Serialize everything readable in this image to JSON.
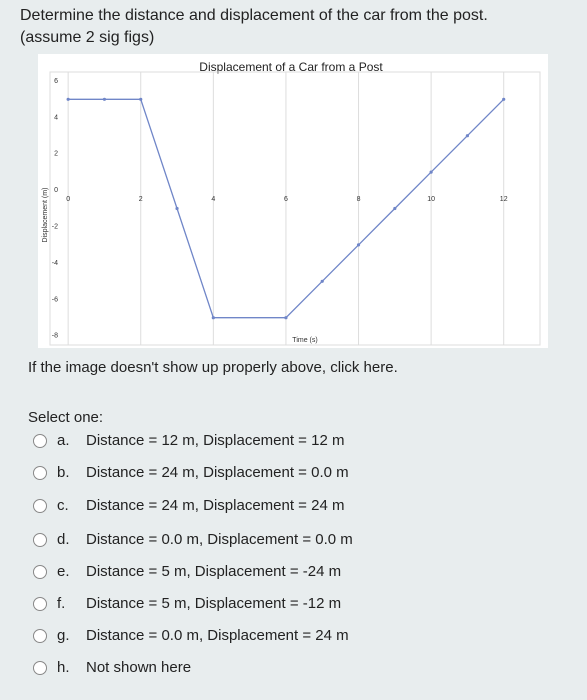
{
  "question": [
    "Determine the distance and displacement of the car from the post.",
    "(assume 2 sig figs)"
  ],
  "chart_data": {
    "type": "line",
    "title": "Displacement of a Car from a Post",
    "x_label": "Time (s)",
    "y_label": "Displacement (m)",
    "x": [
      0,
      1,
      2,
      3,
      4,
      6,
      7,
      8,
      9,
      10,
      11,
      12
    ],
    "series": [
      {
        "name": "Displacement",
        "color": "#7086c8",
        "values": [
          5,
          5,
          5,
          -1,
          -7,
          -7,
          -5,
          -3,
          -1,
          1,
          3,
          5
        ]
      }
    ],
    "xlim": [
      -0.5,
      13
    ],
    "ylim": [
      -8.5,
      6.5
    ],
    "xticks": [
      0,
      2,
      4,
      6,
      8,
      10,
      12
    ],
    "yticks": [
      -8,
      -6,
      -4,
      -2,
      0,
      2,
      4,
      6
    ],
    "grid": "x"
  },
  "note": "If the image doesn't show up properly above, click here.",
  "prompt": "Select one:",
  "options": [
    {
      "letter": "a.",
      "text": "Distance = 12 m, Displacement = 12 m"
    },
    {
      "letter": "b.",
      "text": "Distance = 24 m, Displacement = 0.0 m"
    },
    {
      "letter": "c.",
      "text": "Distance = 24 m, Displacement = 24 m"
    },
    {
      "letter": "d.",
      "text": "Distance = 0.0 m, Displacement = 0.0 m"
    },
    {
      "letter": "e.",
      "text": "Distance = 5 m, Displacement = -24 m"
    },
    {
      "letter": "f.",
      "text": "Distance = 5 m, Displacement = -12 m"
    },
    {
      "letter": "g.",
      "text": "Distance = 0.0 m, Displacement = 24 m"
    },
    {
      "letter": "h.",
      "text": "Not shown here"
    }
  ]
}
